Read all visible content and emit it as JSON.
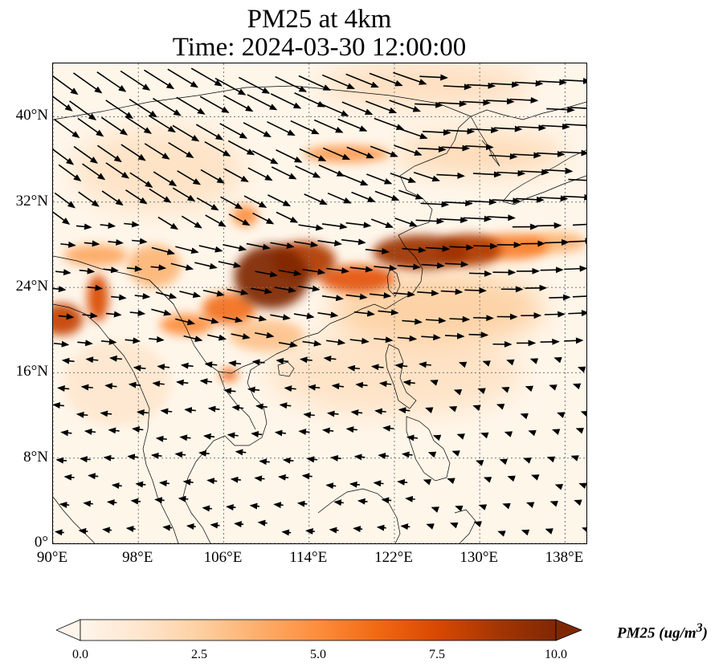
{
  "title": {
    "line1": "PM25 at 4km",
    "line2": "Time: 2024-03-30 12:00:00"
  },
  "map": {
    "extent": {
      "lon_min": 90,
      "lon_max": 140,
      "lat_min": 0,
      "lat_max": 45
    },
    "lat_ticks": [
      {
        "value": 0,
        "label": "0°"
      },
      {
        "value": 8,
        "label": "8°N"
      },
      {
        "value": 16,
        "label": "16°N"
      },
      {
        "value": 24,
        "label": "24°N"
      },
      {
        "value": 32,
        "label": "32°N"
      },
      {
        "value": 40,
        "label": "40°N"
      }
    ],
    "lon_ticks": [
      {
        "value": 90,
        "label": "90°E"
      },
      {
        "value": 98,
        "label": "98°E"
      },
      {
        "value": 106,
        "label": "106°E"
      },
      {
        "value": 114,
        "label": "114°E"
      },
      {
        "value": 122,
        "label": "122°E"
      },
      {
        "value": 130,
        "label": "130°E"
      },
      {
        "value": 138,
        "label": "138°E"
      }
    ],
    "gridlines": true,
    "plumes": [
      {
        "lon": 110.5,
        "lat": 25.0,
        "rx": 3.5,
        "ry": 3.0,
        "value": 10.0
      },
      {
        "lon": 113.5,
        "lat": 26.5,
        "rx": 3.0,
        "ry": 1.8,
        "value": 8.5
      },
      {
        "lon": 118.5,
        "lat": 24.8,
        "rx": 3.5,
        "ry": 1.3,
        "value": 7.0
      },
      {
        "lon": 124.5,
        "lat": 27.3,
        "rx": 4.5,
        "ry": 1.6,
        "value": 9.0
      },
      {
        "lon": 129.0,
        "lat": 27.5,
        "rx": 3.0,
        "ry": 1.5,
        "value": 8.5
      },
      {
        "lon": 133.0,
        "lat": 27.8,
        "rx": 3.5,
        "ry": 1.2,
        "value": 5.5
      },
      {
        "lon": 137.0,
        "lat": 28.2,
        "rx": 3.0,
        "ry": 1.0,
        "value": 3.5
      },
      {
        "lon": 94.2,
        "lat": 23.0,
        "rx": 1.0,
        "ry": 2.2,
        "value": 7.5
      },
      {
        "lon": 90.8,
        "lat": 21.0,
        "rx": 2.0,
        "ry": 1.5,
        "value": 8.0
      },
      {
        "lon": 102.5,
        "lat": 20.5,
        "rx": 2.5,
        "ry": 1.0,
        "value": 5.0
      },
      {
        "lon": 106.5,
        "lat": 22.0,
        "rx": 2.5,
        "ry": 1.5,
        "value": 6.0
      },
      {
        "lon": 108.0,
        "lat": 30.7,
        "rx": 1.2,
        "ry": 1.0,
        "value": 5.0
      },
      {
        "lon": 117.5,
        "lat": 36.5,
        "rx": 4.0,
        "ry": 0.8,
        "value": 4.5
      },
      {
        "lon": 106.5,
        "lat": 15.8,
        "rx": 0.8,
        "ry": 0.6,
        "value": 6.5
      },
      {
        "lon": 99.5,
        "lat": 26.0,
        "rx": 2.5,
        "ry": 2.0,
        "value": 3.5
      },
      {
        "lon": 94.0,
        "lat": 27.0,
        "rx": 3.0,
        "ry": 1.0,
        "value": 4.0
      },
      {
        "lon": 110.0,
        "lat": 19.5,
        "rx": 3.5,
        "ry": 1.5,
        "value": 3.0
      },
      {
        "lon": 126.0,
        "lat": 22.0,
        "rx": 10.0,
        "ry": 3.5,
        "value": 2.5
      },
      {
        "lon": 130.0,
        "lat": 36.5,
        "rx": 8.0,
        "ry": 2.0,
        "value": 2.0
      },
      {
        "lon": 100.0,
        "lat": 35.0,
        "rx": 8.0,
        "ry": 4.0,
        "value": 1.5
      },
      {
        "lon": 125.0,
        "lat": 43.0,
        "rx": 10.0,
        "ry": 2.0,
        "value": 1.8
      },
      {
        "lon": 122.0,
        "lat": 16.0,
        "rx": 12.0,
        "ry": 4.0,
        "value": 1.5
      },
      {
        "lon": 96.0,
        "lat": 15.0,
        "rx": 5.0,
        "ry": 4.0,
        "value": 1.2
      }
    ]
  },
  "colorbar": {
    "min": 0.0,
    "max": 10.0,
    "ticks": [
      "0.0",
      "2.5",
      "5.0",
      "7.5",
      "10.0"
    ],
    "label": "PM25 (ug/m",
    "label_superscript": "3",
    "label_suffix": ")",
    "colormap": [
      "#fff5eb",
      "#fee6ce",
      "#fdd0a2",
      "#fdae6b",
      "#fd8d3c",
      "#f16913",
      "#d94801",
      "#a63603",
      "#7f2704"
    ]
  }
}
